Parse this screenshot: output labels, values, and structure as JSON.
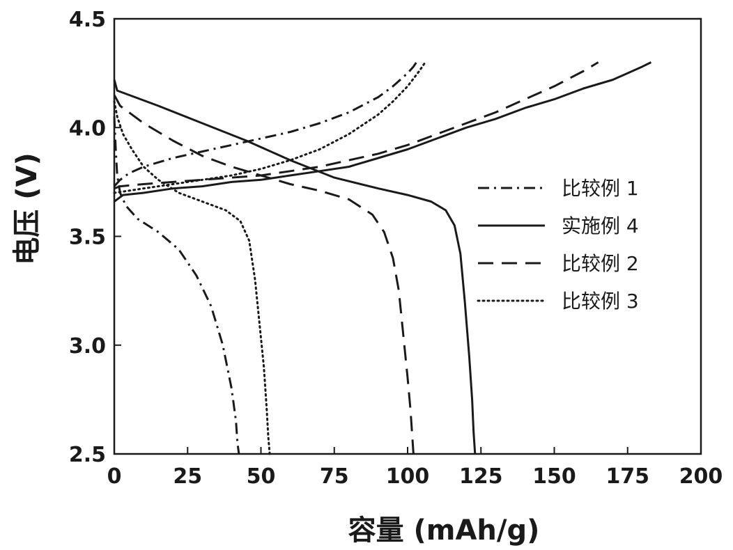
{
  "chart_data": {
    "type": "line",
    "title": "",
    "xlabel": "容量 (mAh/g)",
    "ylabel": "电压 (V)",
    "xlim": [
      0,
      200
    ],
    "ylim": [
      2.5,
      4.5
    ],
    "xticks": [
      0,
      25,
      50,
      75,
      100,
      125,
      150,
      175,
      200
    ],
    "xtick_labels": [
      "0",
      "25",
      "50",
      "75",
      "100",
      "125",
      "150",
      "175",
      "200"
    ],
    "yticks": [
      2.5,
      3.0,
      3.5,
      4.0,
      4.5
    ],
    "ytick_labels": [
      "2.5",
      "3.0",
      "3.5",
      "4.0",
      "4.5"
    ],
    "grid": false,
    "legend_position": "right",
    "series": [
      {
        "name": "比较例 1",
        "style": "dashdot",
        "color": "#1a1a1a",
        "charge": {
          "x": [
            0,
            2,
            5,
            10,
            20,
            30,
            40,
            50,
            60,
            70,
            80,
            90,
            95,
            100,
            102,
            103
          ],
          "y": [
            3.73,
            3.76,
            3.79,
            3.82,
            3.86,
            3.89,
            3.92,
            3.95,
            3.98,
            4.02,
            4.07,
            4.14,
            4.19,
            4.25,
            4.28,
            4.3
          ]
        },
        "discharge": {
          "x": [
            0,
            0.5,
            1,
            2,
            4,
            8,
            15,
            22,
            28,
            33,
            37,
            40,
            41.5,
            42,
            42.5
          ],
          "y": [
            4.05,
            3.9,
            3.78,
            3.7,
            3.64,
            3.58,
            3.52,
            3.44,
            3.32,
            3.18,
            3.0,
            2.8,
            2.65,
            2.55,
            2.5
          ]
        }
      },
      {
        "name": "实施例 4",
        "style": "solid",
        "color": "#1a1a1a",
        "charge": {
          "x": [
            0,
            3,
            10,
            20,
            30,
            40,
            50,
            60,
            70,
            80,
            90,
            100,
            110,
            120,
            130,
            140,
            150,
            160,
            170,
            180,
            183
          ],
          "y": [
            3.66,
            3.69,
            3.7,
            3.72,
            3.73,
            3.75,
            3.76,
            3.78,
            3.8,
            3.82,
            3.86,
            3.9,
            3.95,
            4.0,
            4.04,
            4.09,
            4.13,
            4.18,
            4.22,
            4.28,
            4.3
          ]
        },
        "discharge": {
          "x": [
            0,
            1,
            5,
            15,
            30,
            45,
            60,
            75,
            90,
            100,
            108,
            113,
            116,
            118,
            119.5,
            121,
            122,
            122.5,
            123
          ],
          "y": [
            4.22,
            4.17,
            4.15,
            4.1,
            4.02,
            3.94,
            3.85,
            3.77,
            3.72,
            3.69,
            3.66,
            3.62,
            3.55,
            3.42,
            3.2,
            2.95,
            2.75,
            2.6,
            2.5
          ]
        }
      },
      {
        "name": "比较例 2",
        "style": "dashed",
        "color": "#1a1a1a",
        "charge": {
          "x": [
            0,
            2,
            10,
            20,
            30,
            40,
            50,
            60,
            70,
            80,
            90,
            100,
            110,
            120,
            130,
            140,
            150,
            160,
            165
          ],
          "y": [
            3.72,
            3.73,
            3.74,
            3.75,
            3.76,
            3.77,
            3.78,
            3.8,
            3.82,
            3.85,
            3.88,
            3.92,
            3.97,
            4.02,
            4.07,
            4.13,
            4.19,
            4.26,
            4.3
          ]
        },
        "discharge": {
          "x": [
            0,
            2,
            10,
            20,
            30,
            40,
            50,
            60,
            70,
            80,
            88,
            92,
            95,
            97,
            98.5,
            100,
            101,
            101.5,
            102
          ],
          "y": [
            4.15,
            4.1,
            4.02,
            3.94,
            3.87,
            3.82,
            3.78,
            3.74,
            3.71,
            3.67,
            3.6,
            3.52,
            3.4,
            3.25,
            3.05,
            2.85,
            2.7,
            2.6,
            2.5
          ]
        }
      },
      {
        "name": "比较例 3",
        "style": "dotted",
        "color": "#1a1a1a",
        "charge": {
          "x": [
            0,
            5,
            10,
            20,
            30,
            40,
            50,
            60,
            70,
            80,
            90,
            95,
            100,
            104,
            106
          ],
          "y": [
            3.7,
            3.71,
            3.72,
            3.74,
            3.76,
            3.78,
            3.81,
            3.85,
            3.9,
            3.97,
            4.06,
            4.12,
            4.19,
            4.26,
            4.3
          ]
        },
        "discharge": {
          "x": [
            0,
            1,
            3,
            6,
            10,
            15,
            22,
            30,
            38,
            43,
            46,
            48,
            49.5,
            51,
            52,
            52.5,
            53
          ],
          "y": [
            4.12,
            4.05,
            3.97,
            3.9,
            3.82,
            3.76,
            3.7,
            3.66,
            3.62,
            3.57,
            3.48,
            3.3,
            3.1,
            2.9,
            2.7,
            2.58,
            2.5
          ]
        }
      }
    ]
  }
}
